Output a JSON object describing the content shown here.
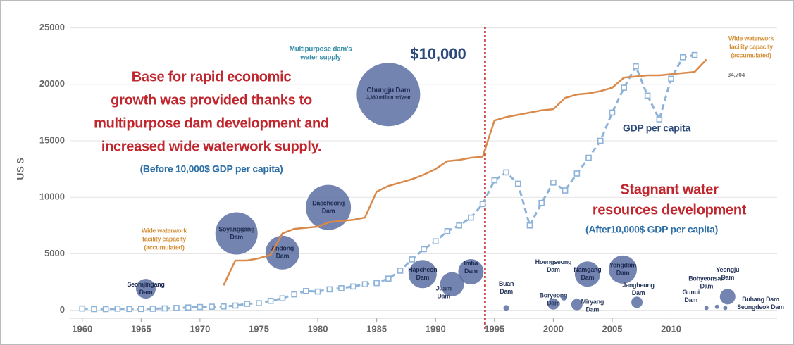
{
  "chart_data": {
    "type": "line",
    "y_label": "US $",
    "xlim": [
      1959,
      2019
    ],
    "ylim": [
      -900,
      25600
    ],
    "xticks": [
      1960,
      1965,
      1970,
      1975,
      1980,
      1985,
      1990,
      1995,
      2000,
      2005,
      2010
    ],
    "yticks": [
      0,
      5000,
      10000,
      15000,
      20000,
      25000
    ],
    "grid": true,
    "threshold_x": 1994.2,
    "threshold_color": "#c0262d",
    "x": [
      1960,
      1961,
      1962,
      1963,
      1964,
      1965,
      1966,
      1967,
      1968,
      1969,
      1970,
      1971,
      1972,
      1973,
      1974,
      1975,
      1976,
      1977,
      1978,
      1979,
      1980,
      1981,
      1982,
      1983,
      1984,
      1985,
      1986,
      1987,
      1988,
      1989,
      1990,
      1991,
      1992,
      1993,
      1994,
      1995,
      1996,
      1997,
      1998,
      1999,
      2000,
      2001,
      2002,
      2003,
      2004,
      2005,
      2006,
      2007,
      2008,
      2009,
      2010,
      2011,
      2012,
      2013
    ],
    "series": [
      {
        "name": "GDP per capita",
        "color": "#8db3d9",
        "values": [
          150,
          100,
          100,
          140,
          110,
          110,
          130,
          160,
          200,
          240,
          280,
          310,
          330,
          410,
          560,
          620,
          830,
          1050,
          1400,
          1700,
          1650,
          1850,
          1950,
          2100,
          2300,
          2400,
          2800,
          3500,
          4500,
          5400,
          6100,
          7000,
          7500,
          8200,
          9400,
          11500,
          12200,
          11200,
          7500,
          9500,
          11300,
          10600,
          12100,
          13500,
          15000,
          17500,
          19700,
          21600,
          19000,
          16900,
          20500,
          22400,
          22600,
          null
        ]
      },
      {
        "name": "Wide waterwork facility capacity (accumulated)",
        "color": "#d9894a",
        "values": [
          null,
          null,
          null,
          null,
          null,
          null,
          null,
          null,
          null,
          null,
          null,
          null,
          2200,
          4400,
          4400,
          4600,
          4900,
          6800,
          7200,
          7300,
          7400,
          7800,
          7900,
          8000,
          8200,
          10500,
          11000,
          11300,
          11600,
          12000,
          12500,
          13200,
          13300,
          13500,
          13600,
          16800,
          17100,
          17300,
          17500,
          17700,
          17800,
          18800,
          19100,
          19200,
          19400,
          19700,
          20600,
          20700,
          20800,
          20800,
          20900,
          21000,
          21100,
          22200
        ]
      }
    ],
    "bubble_color": "#5b6ea3",
    "bubbles": [
      {
        "label": [
          "Seomjingang",
          "Dam"
        ],
        "x": 1965.4,
        "y": 1900,
        "size": 14
      },
      {
        "label": [
          "Soyanggang",
          "Dam"
        ],
        "x": 1973.1,
        "y": 6800,
        "size": 30
      },
      {
        "label": [
          "Andong",
          "Dam"
        ],
        "x": 1977.0,
        "y": 5100,
        "size": 24
      },
      {
        "label": [
          "Daecheong",
          "Dam"
        ],
        "x": 1980.9,
        "y": 9100,
        "size": 32
      },
      {
        "label": [
          "Chungju Dam",
          "3,380 million m³/year"
        ],
        "x": 1986.0,
        "y": 19100,
        "size": 45
      },
      {
        "label": [
          "Hapcheon",
          "Dam"
        ],
        "x": 1988.9,
        "y": 3200,
        "size": 20
      },
      {
        "label": [
          "Juam",
          "Dam"
        ],
        "x": 1991.4,
        "y": 2300,
        "size": 17
      },
      {
        "label": [
          "Imha",
          "Dam"
        ],
        "x": 1993.0,
        "y": 3400,
        "size": 18
      },
      {
        "label": [
          "Buan",
          "Dam"
        ],
        "x": 1996.0,
        "y": 200,
        "size": 4
      },
      {
        "label": [
          "Boryeong",
          "Dam"
        ],
        "x": 2000.0,
        "y": 550,
        "size": 8
      },
      {
        "label": [
          "Hoengseong",
          "Dam"
        ],
        "x": 2000.9,
        "y": 1100,
        "size": 4
      },
      {
        "label": [
          "Miryang",
          "Dam"
        ],
        "x": 2002.0,
        "y": 500,
        "size": 8
      },
      {
        "label": [
          "Namgang",
          "Dam"
        ],
        "x": 2002.9,
        "y": 3200,
        "size": 18
      },
      {
        "label": [
          "Yongdam",
          "Dam"
        ],
        "x": 2005.9,
        "y": 3600,
        "size": 20
      },
      {
        "label": [
          "Jangheung",
          "Dam"
        ],
        "x": 2007.1,
        "y": 700,
        "size": 8
      },
      {
        "label": [
          "Gunui",
          "Dam"
        ],
        "x": 2013.0,
        "y": 200,
        "size": 3
      },
      {
        "label": [
          "Bohyeonsan",
          "Dam"
        ],
        "x": 2013.9,
        "y": 300,
        "size": 3
      },
      {
        "label": [
          "Yeongju",
          "Dam"
        ],
        "x": 2014.8,
        "y": 1200,
        "size": 11
      },
      {
        "label": [
          "Buhang Dam",
          "Seongdeok Dam"
        ],
        "x": 2014.6,
        "y": 200,
        "size": 3
      }
    ],
    "annotations": [
      {
        "lines": [
          "Multipurpose dam's",
          "water supply"
        ],
        "color": "#3a8fa8"
      },
      {
        "lines": [
          "$10,000"
        ],
        "color": "#2b4a7a"
      },
      {
        "lines": [
          "Base for rapid economic",
          "growth was provided thanks to",
          "multipurpose dam development and",
          "increased wide waterwork supply."
        ],
        "color": "#c0262d"
      },
      {
        "lines": [
          "(Before 10,000$ GDP per capita)"
        ],
        "color": "#2e6fa7"
      },
      {
        "lines": [
          "Wide waterwork",
          "facility capacity",
          "(accumulated)"
        ],
        "color": "#d4913a"
      },
      {
        "lines": [
          "34,704"
        ],
        "color": "#777777"
      },
      {
        "lines": [
          "Wide waterwork",
          "facility capacity",
          "(accumulated)"
        ],
        "color": "#d4913a"
      },
      {
        "lines": [
          "GDP per capita"
        ],
        "color": "#2b4a7a"
      },
      {
        "lines": [
          "Stagnant water",
          "resources development"
        ],
        "color": "#c0262d"
      },
      {
        "lines": [
          "(After10,000$ GDP per capita)"
        ],
        "color": "#2e6fa7"
      }
    ]
  }
}
